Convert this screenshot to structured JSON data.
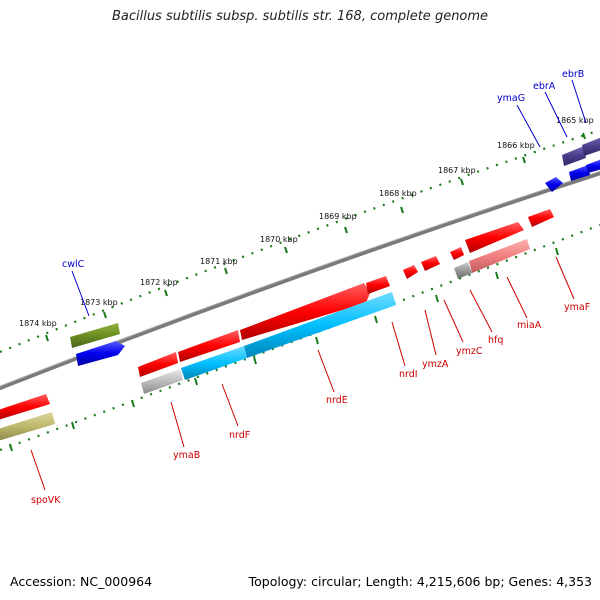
{
  "title": "Bacillus subtilis subsp. subtilis str. 168, complete genome",
  "footer": {
    "accession": "Accession: NC_000964",
    "summary": "Topology: circular; Length: 4,215,606 bp; Genes: 4,353"
  },
  "colors": {
    "backbone": "#7a7a7a",
    "tick": "#1b7a1b",
    "top_label": "#0000cc",
    "bottom_label": "#cc0000"
  },
  "kbp_marks": [
    "1874 kbp",
    "1873 kbp",
    "1872 kbp",
    "1871 kbp",
    "1870 kbp",
    "1869 kbp",
    "1868 kbp",
    "1867 kbp",
    "1866 kbp",
    "1865 kbp"
  ],
  "top_genes": [
    {
      "id": "cwlC",
      "color": "#6b8e23"
    },
    {
      "id": "ymaG",
      "color": "#483d8b"
    },
    {
      "id": "ebrA",
      "color": "#0000ee"
    },
    {
      "id": "ebrB",
      "color": "#0000ee"
    }
  ],
  "bottom_genes": [
    {
      "id": "spoVK",
      "color": "#bdb76b"
    },
    {
      "id": "ymaB",
      "color": "#bbbbbb"
    },
    {
      "id": "nrdF",
      "color": "#00bfff"
    },
    {
      "id": "nrdE",
      "color": "#00bfff"
    },
    {
      "id": "nrdI",
      "color": "#ff0000"
    },
    {
      "id": "ymzA",
      "color": "#ff0000"
    },
    {
      "id": "ymzC",
      "color": "#ff0000"
    },
    {
      "id": "hfq",
      "color": "#999999"
    },
    {
      "id": "miaA",
      "color": "#f08080"
    },
    {
      "id": "ymaF",
      "color": "#ff0000"
    }
  ]
}
